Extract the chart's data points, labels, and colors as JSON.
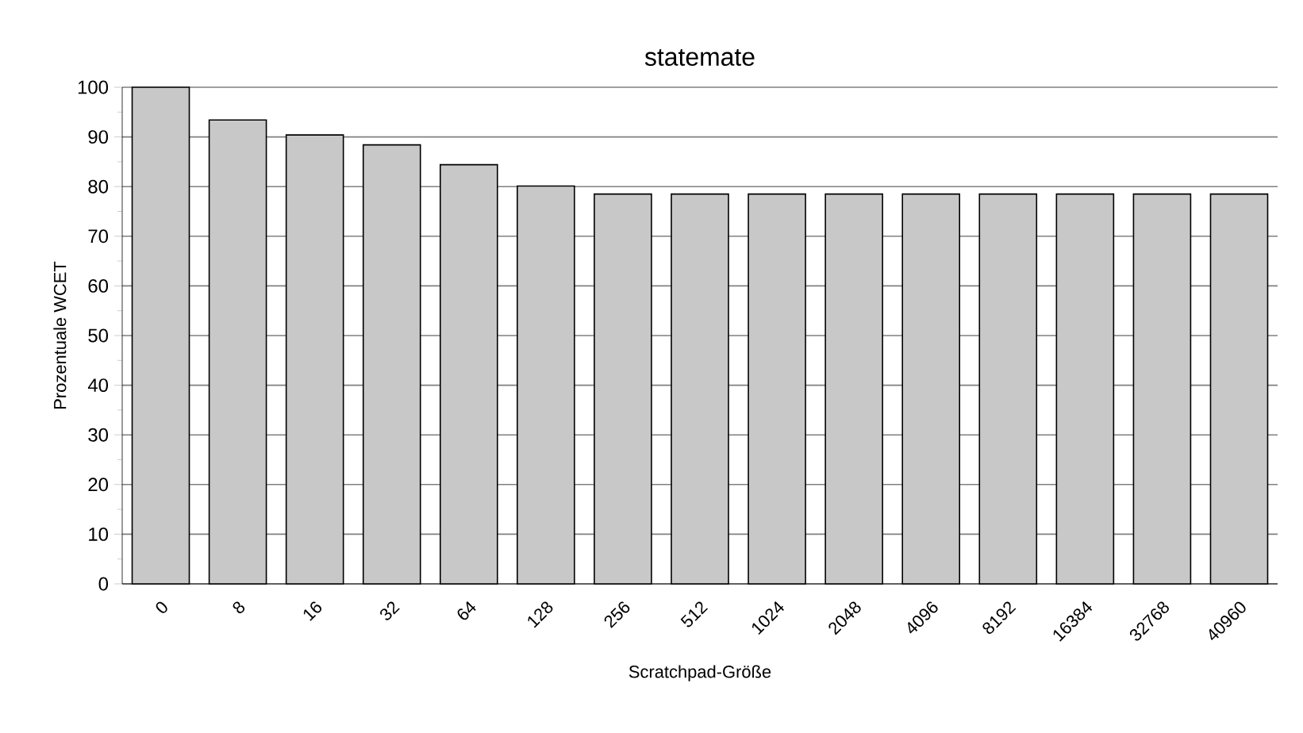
{
  "chart_data": {
    "type": "bar",
    "title": "statemate",
    "xlabel": "Scratchpad-Größe",
    "ylabel": "Prozentuale WCET",
    "categories": [
      "0",
      "8",
      "16",
      "32",
      "64",
      "128",
      "256",
      "512",
      "1024",
      "2048",
      "4096",
      "8192",
      "16384",
      "32768",
      "40960"
    ],
    "values": [
      100,
      93.4,
      90.4,
      88.4,
      84.4,
      80.1,
      78.5,
      78.5,
      78.5,
      78.5,
      78.5,
      78.5,
      78.5,
      78.5,
      78.5
    ],
    "color": "#c8c8c8",
    "ylim": [
      0,
      100
    ],
    "yticks": [
      0,
      10,
      20,
      30,
      40,
      50,
      60,
      70,
      80,
      90,
      100
    ],
    "grid": "y"
  }
}
